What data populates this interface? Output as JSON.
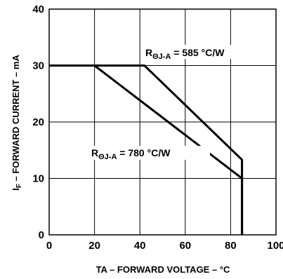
{
  "chart_data": {
    "type": "line",
    "title": "",
    "xlabel": "TA – FORWARD VOLTAGE – °C",
    "ylabel_main": "I",
    "ylabel_sub": "F",
    "ylabel_rest": " – FORWARD CURRENT – mA",
    "xlim": [
      0,
      100
    ],
    "ylim": [
      0,
      40
    ],
    "x_ticks": [
      0,
      20,
      40,
      60,
      80,
      100
    ],
    "y_ticks": [
      0,
      10,
      20,
      30,
      40
    ],
    "grid": true,
    "series": [
      {
        "name": "",
        "label_main": "R",
        "label_sub": "ΘJ-A",
        "label_rest": " = 585 °C/W",
        "x": [
          0,
          42,
          85,
          85
        ],
        "y": [
          30,
          30,
          13.3,
          0
        ]
      },
      {
        "name": "",
        "label_main": "R",
        "label_sub": "ΘJ-A",
        "label_rest": " = 780 °C/W",
        "x": [
          0,
          20,
          85,
          85
        ],
        "y": [
          30,
          30,
          10,
          0
        ]
      }
    ]
  }
}
